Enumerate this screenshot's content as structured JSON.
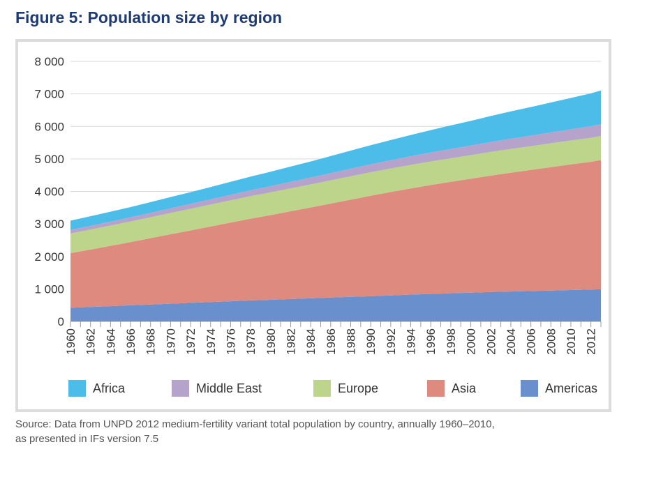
{
  "figure": {
    "title": "Figure 5: Population size by region",
    "source_line1": "Source: Data from UNPD 2012 medium-fertility variant total population by country, annually 1960–2010,",
    "source_line2": "as presented in IFs version 7.5"
  },
  "chart_data": {
    "type": "area",
    "stacked": true,
    "x": [
      1960,
      1962,
      1964,
      1966,
      1968,
      1970,
      1972,
      1974,
      1976,
      1978,
      1980,
      1982,
      1984,
      1986,
      1988,
      1990,
      1992,
      1994,
      1996,
      1998,
      2000,
      2002,
      2004,
      2006,
      2008,
      2010,
      2012,
      2013
    ],
    "x_tick_labels": [
      "1960",
      "1962",
      "1964",
      "1966",
      "1968",
      "1970",
      "1972",
      "1974",
      "1976",
      "1978",
      "1980",
      "1982",
      "1984",
      "1986",
      "1988",
      "1990",
      "1992",
      "1994",
      "1996",
      "1998",
      "2000",
      "2002",
      "2004",
      "2006",
      "2008",
      "2010",
      "2012"
    ],
    "ylim": [
      0,
      8000
    ],
    "y_ticks": [
      0,
      1000,
      2000,
      3000,
      4000,
      5000,
      6000,
      7000,
      8000
    ],
    "y_tick_labels": [
      "0",
      "1 000",
      "2 000",
      "3 000",
      "4 000",
      "5 000",
      "6 000",
      "7 000",
      "8 000"
    ],
    "grid": true,
    "legend_position": "bottom",
    "series": [
      {
        "name": "Americas",
        "color": "#6a8fcd",
        "values": [
          420,
          445,
          470,
          495,
          520,
          545,
          570,
          595,
          620,
          645,
          665,
          690,
          710,
          735,
          755,
          775,
          800,
          825,
          845,
          865,
          885,
          905,
          920,
          935,
          950,
          965,
          980,
          990
        ]
      },
      {
        "name": "Asia",
        "color": "#df8a7e",
        "values": [
          1680,
          1765,
          1855,
          1945,
          2040,
          2135,
          2230,
          2325,
          2420,
          2515,
          2605,
          2700,
          2795,
          2890,
          2990,
          3090,
          3180,
          3265,
          3350,
          3430,
          3505,
          3580,
          3655,
          3725,
          3795,
          3865,
          3930,
          3975
        ]
      },
      {
        "name": "Europe",
        "color": "#bdd58a",
        "values": [
          605,
          615,
          625,
          635,
          645,
          655,
          665,
          675,
          685,
          695,
          700,
          705,
          710,
          715,
          720,
          725,
          725,
          725,
          725,
          725,
          725,
          730,
          730,
          730,
          735,
          735,
          740,
          740
        ]
      },
      {
        "name": "Middle East",
        "color": "#b5a3cc",
        "values": [
          110,
          115,
          120,
          128,
          135,
          145,
          152,
          160,
          170,
          180,
          190,
          200,
          210,
          220,
          235,
          245,
          255,
          265,
          275,
          285,
          295,
          305,
          315,
          325,
          335,
          345,
          355,
          360
        ]
      },
      {
        "name": "Africa",
        "color": "#4cbde9",
        "values": [
          285,
          295,
          305,
          315,
          330,
          345,
          360,
          380,
          400,
          420,
          445,
          470,
          495,
          525,
          555,
          585,
          620,
          655,
          690,
          725,
          760,
          800,
          840,
          880,
          920,
          965,
          1010,
          1040
        ]
      }
    ],
    "legend": [
      {
        "name": "Africa",
        "color": "#4cbde9"
      },
      {
        "name": "Middle East",
        "color": "#b5a3cc"
      },
      {
        "name": "Europe",
        "color": "#bdd58a"
      },
      {
        "name": "Asia",
        "color": "#df8a7e"
      },
      {
        "name": "Americas",
        "color": "#6a8fcd"
      }
    ]
  }
}
